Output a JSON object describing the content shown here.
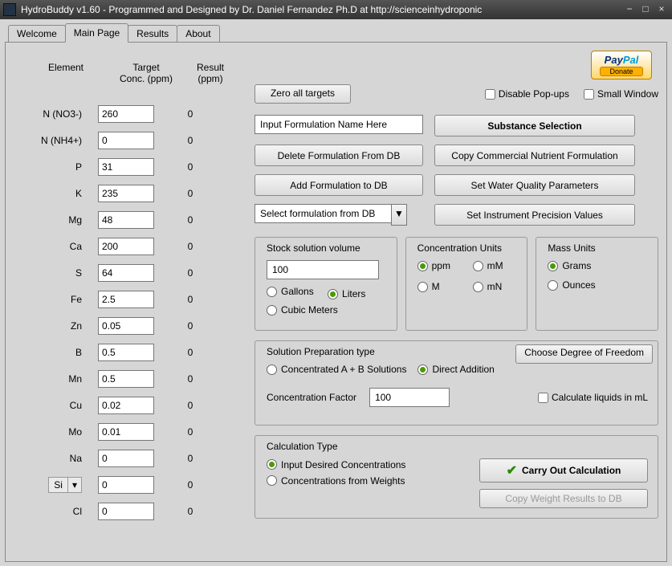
{
  "window": {
    "title": "HydroBuddy v1.60 - Programmed and Designed by Dr. Daniel Fernandez Ph.D at http://scienceinhydroponic"
  },
  "tabs": {
    "welcome": "Welcome",
    "main": "Main Page",
    "results": "Results",
    "about": "About"
  },
  "headers": {
    "element": "Element",
    "target1": "Target",
    "target2": "Conc. (ppm)",
    "result1": "Result",
    "result2": "(ppm)"
  },
  "elements": [
    {
      "label": "N (NO3-)",
      "value": "260",
      "result": "0"
    },
    {
      "label": "N (NH4+)",
      "value": "0",
      "result": "0"
    },
    {
      "label": "P",
      "value": "31",
      "result": "0"
    },
    {
      "label": "K",
      "value": "235",
      "result": "0"
    },
    {
      "label": "Mg",
      "value": "48",
      "result": "0"
    },
    {
      "label": "Ca",
      "value": "200",
      "result": "0"
    },
    {
      "label": "S",
      "value": "64",
      "result": "0"
    },
    {
      "label": "Fe",
      "value": "2.5",
      "result": "0"
    },
    {
      "label": "Zn",
      "value": "0.05",
      "result": "0"
    },
    {
      "label": "B",
      "value": "0.5",
      "result": "0"
    },
    {
      "label": "Mn",
      "value": "0.5",
      "result": "0"
    },
    {
      "label": "Cu",
      "value": "0.02",
      "result": "0"
    },
    {
      "label": "Mo",
      "value": "0.01",
      "result": "0"
    },
    {
      "label": "Na",
      "value": "0",
      "result": "0"
    },
    {
      "label": "Si",
      "value": "0",
      "result": "0",
      "dropdown": true
    },
    {
      "label": "Cl",
      "value": "0",
      "result": "0"
    }
  ],
  "top": {
    "zero": "Zero all targets",
    "disable_popups": "Disable Pop-ups",
    "small_window": "Small Window",
    "paypal1": "Pay",
    "paypal2": "Pal",
    "donate": "Donate"
  },
  "actions": {
    "formulation_name": "Input Formulation Name Here",
    "substance": "Substance Selection",
    "delete_db": "Delete Formulation From DB",
    "copy_comm": "Copy Commercial Nutrient Formulation",
    "add_db": "Add Formulation to DB",
    "water_quality": "Set Water Quality Parameters",
    "select_db": "Select formulation from DB",
    "precision": "Set Instrument Precision Values"
  },
  "stock": {
    "title": "Stock solution volume",
    "value": "100",
    "gallons": "Gallons",
    "liters": "Liters",
    "cubic": "Cubic Meters"
  },
  "concunits": {
    "title": "Concentration Units",
    "ppm": "ppm",
    "mM": "mM",
    "M": "M",
    "mN": "mN"
  },
  "massunits": {
    "title": "Mass Units",
    "grams": "Grams",
    "ounces": "Ounces"
  },
  "solprep": {
    "title": "Solution Preparation type",
    "ab": "Concentrated A + B Solutions",
    "direct": "Direct Addition",
    "factor_label": "Concentration Factor",
    "factor_value": "100",
    "calc_ml": "Calculate liquids in mL",
    "dof": "Choose Degree of Freedom"
  },
  "calc": {
    "title": "Calculation Type",
    "input_conc": "Input Desired Concentrations",
    "from_weights": "Concentrations from  Weights",
    "carry": "Carry Out Calculation",
    "copy_weight": "Copy Weight Results to DB"
  }
}
